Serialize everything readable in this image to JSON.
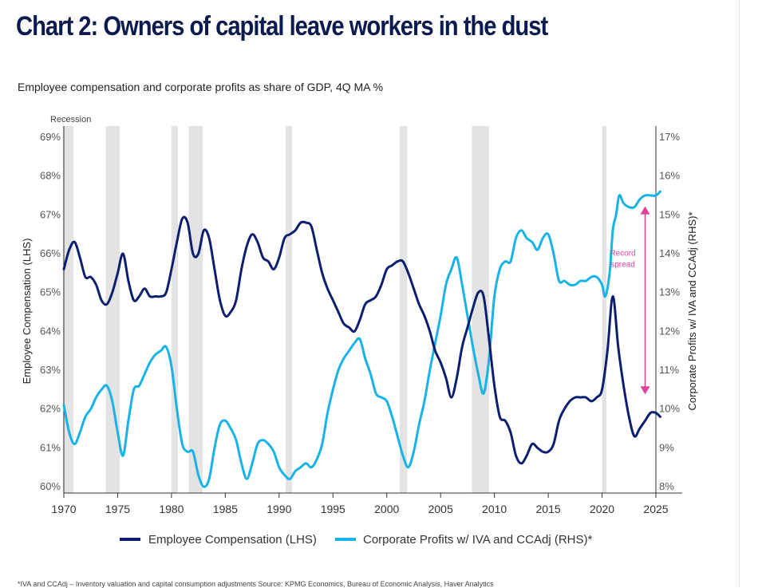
{
  "header": {
    "title": "Chart 2: Owners of capital leave workers in the dust",
    "subtitle": "Employee compensation and corporate profits as share of GDP, 4Q MA %"
  },
  "footnote": "*IVA and CCAdj – Inventory valuation and capital consumption adjustments Source: KPMG Economics, Bureau of Economic Analysis, Haver Analytics",
  "chart_data": {
    "type": "line",
    "ylabel_left": "Employee Compensation (LHS)",
    "ylabel_right": "Corporate Profits w/ IVA and CCAdj (RHS)*",
    "recession_label": "Recession",
    "xlim": [
      1970,
      2025
    ],
    "ylim_left": [
      60,
      69
    ],
    "ylim_right": [
      8,
      17
    ],
    "x_ticks": [
      "1970",
      "1975",
      "1980",
      "1985",
      "1990",
      "1995",
      "2000",
      "2005",
      "2010",
      "2015",
      "2020",
      "2025"
    ],
    "y_ticks_left": [
      "60%",
      "61%",
      "62%",
      "63%",
      "64%",
      "65%",
      "66%",
      "67%",
      "68%",
      "69%"
    ],
    "y_ticks_right": [
      "8%",
      "9%",
      "10%",
      "11%",
      "12%",
      "13%",
      "14%",
      "15%",
      "16%",
      "17%"
    ],
    "recessions": [
      [
        1969.9,
        1970.9
      ],
      [
        1973.9,
        1975.2
      ],
      [
        1980.0,
        1980.6
      ],
      [
        1981.6,
        1982.9
      ],
      [
        1990.6,
        1991.2
      ],
      [
        2001.2,
        2001.9
      ],
      [
        2007.9,
        2009.5
      ],
      [
        2020.0,
        2020.4
      ]
    ],
    "annotation": {
      "line1": "Record",
      "line2": "spread",
      "x": 2024,
      "y_top": 15.2,
      "y_bottom": 10.4
    },
    "legend_position": "bottom",
    "series": [
      {
        "name": "Employee Compensation (LHS)",
        "axis": "left",
        "color": "#0c1e6e",
        "points": [
          [
            1970,
            65.6
          ],
          [
            1970.5,
            66.1
          ],
          [
            1971,
            66.3
          ],
          [
            1971.5,
            65.9
          ],
          [
            1972,
            65.4
          ],
          [
            1972.5,
            65.4
          ],
          [
            1973,
            65.2
          ],
          [
            1973.5,
            64.8
          ],
          [
            1974,
            64.7
          ],
          [
            1974.5,
            65.0
          ],
          [
            1975,
            65.5
          ],
          [
            1975.5,
            66.0
          ],
          [
            1976,
            65.3
          ],
          [
            1976.5,
            64.8
          ],
          [
            1977,
            64.9
          ],
          [
            1977.5,
            65.1
          ],
          [
            1978,
            64.9
          ],
          [
            1978.5,
            64.9
          ],
          [
            1979,
            64.9
          ],
          [
            1979.5,
            65.0
          ],
          [
            1980,
            65.6
          ],
          [
            1980.5,
            66.3
          ],
          [
            1981,
            66.9
          ],
          [
            1981.5,
            66.8
          ],
          [
            1982,
            66.0
          ],
          [
            1982.5,
            66.0
          ],
          [
            1983,
            66.6
          ],
          [
            1983.5,
            66.4
          ],
          [
            1984,
            65.6
          ],
          [
            1984.5,
            64.8
          ],
          [
            1985,
            64.4
          ],
          [
            1985.5,
            64.5
          ],
          [
            1986,
            64.8
          ],
          [
            1986.5,
            65.6
          ],
          [
            1987,
            66.2
          ],
          [
            1987.5,
            66.5
          ],
          [
            1988,
            66.3
          ],
          [
            1988.5,
            65.9
          ],
          [
            1989,
            65.8
          ],
          [
            1989.5,
            65.6
          ],
          [
            1990,
            65.9
          ],
          [
            1990.5,
            66.4
          ],
          [
            1991,
            66.5
          ],
          [
            1991.5,
            66.6
          ],
          [
            1992,
            66.8
          ],
          [
            1992.5,
            66.8
          ],
          [
            1993,
            66.7
          ],
          [
            1993.5,
            66.1
          ],
          [
            1994,
            65.5
          ],
          [
            1994.5,
            65.1
          ],
          [
            1995,
            64.8
          ],
          [
            1995.5,
            64.5
          ],
          [
            1996,
            64.2
          ],
          [
            1996.5,
            64.1
          ],
          [
            1997,
            64.0
          ],
          [
            1997.5,
            64.3
          ],
          [
            1998,
            64.7
          ],
          [
            1998.5,
            64.8
          ],
          [
            1999,
            64.9
          ],
          [
            1999.5,
            65.2
          ],
          [
            2000,
            65.6
          ],
          [
            2000.5,
            65.7
          ],
          [
            2001,
            65.8
          ],
          [
            2001.5,
            65.8
          ],
          [
            2002,
            65.5
          ],
          [
            2002.5,
            65.1
          ],
          [
            2003,
            64.7
          ],
          [
            2003.5,
            64.4
          ],
          [
            2004,
            64.0
          ],
          [
            2004.5,
            63.5
          ],
          [
            2005,
            63.2
          ],
          [
            2005.5,
            62.8
          ],
          [
            2006,
            62.3
          ],
          [
            2006.5,
            62.8
          ],
          [
            2007,
            63.6
          ],
          [
            2007.5,
            64.1
          ],
          [
            2008,
            64.6
          ],
          [
            2008.5,
            65.0
          ],
          [
            2009,
            64.9
          ],
          [
            2009.5,
            63.8
          ],
          [
            2010,
            62.6
          ],
          [
            2010.5,
            61.8
          ],
          [
            2011,
            61.7
          ],
          [
            2011.5,
            61.4
          ],
          [
            2012,
            60.8
          ],
          [
            2012.5,
            60.6
          ],
          [
            2013,
            60.8
          ],
          [
            2013.5,
            61.1
          ],
          [
            2014,
            61.0
          ],
          [
            2014.5,
            60.9
          ],
          [
            2015,
            60.9
          ],
          [
            2015.5,
            61.1
          ],
          [
            2016,
            61.7
          ],
          [
            2016.5,
            62.0
          ],
          [
            2017,
            62.2
          ],
          [
            2017.5,
            62.3
          ],
          [
            2018,
            62.3
          ],
          [
            2018.5,
            62.3
          ],
          [
            2019,
            62.2
          ],
          [
            2019.5,
            62.3
          ],
          [
            2020,
            62.5
          ],
          [
            2020.5,
            63.5
          ],
          [
            2021,
            64.9
          ],
          [
            2021.5,
            63.6
          ],
          [
            2022,
            62.6
          ],
          [
            2022.5,
            61.8
          ],
          [
            2023,
            61.3
          ],
          [
            2023.5,
            61.5
          ],
          [
            2024,
            61.7
          ],
          [
            2024.5,
            61.9
          ],
          [
            2025,
            61.9
          ],
          [
            2025.4,
            61.8
          ]
        ]
      },
      {
        "name": "Corporate Profits w/ IVA and CCAdj (RHS)*",
        "axis": "right",
        "color": "#17b3e6",
        "points": [
          [
            1970,
            10.1
          ],
          [
            1970.5,
            9.4
          ],
          [
            1971,
            9.1
          ],
          [
            1971.5,
            9.4
          ],
          [
            1972,
            9.8
          ],
          [
            1972.5,
            10.0
          ],
          [
            1973,
            10.3
          ],
          [
            1973.5,
            10.5
          ],
          [
            1974,
            10.6
          ],
          [
            1974.5,
            10.2
          ],
          [
            1975,
            9.4
          ],
          [
            1975.5,
            8.8
          ],
          [
            1976,
            9.7
          ],
          [
            1976.5,
            10.5
          ],
          [
            1977,
            10.6
          ],
          [
            1977.5,
            10.9
          ],
          [
            1978,
            11.2
          ],
          [
            1978.5,
            11.4
          ],
          [
            1979,
            11.5
          ],
          [
            1979.5,
            11.6
          ],
          [
            1980,
            11.1
          ],
          [
            1980.5,
            10.0
          ],
          [
            1981,
            9.1
          ],
          [
            1981.5,
            8.9
          ],
          [
            1982,
            8.9
          ],
          [
            1982.5,
            8.3
          ],
          [
            1983,
            8.0
          ],
          [
            1983.5,
            8.2
          ],
          [
            1984,
            9.0
          ],
          [
            1984.5,
            9.6
          ],
          [
            1985,
            9.7
          ],
          [
            1985.5,
            9.5
          ],
          [
            1986,
            9.2
          ],
          [
            1986.5,
            8.6
          ],
          [
            1987,
            8.2
          ],
          [
            1987.5,
            8.6
          ],
          [
            1988,
            9.1
          ],
          [
            1988.5,
            9.2
          ],
          [
            1989,
            9.1
          ],
          [
            1989.5,
            8.9
          ],
          [
            1990,
            8.5
          ],
          [
            1990.5,
            8.3
          ],
          [
            1991,
            8.2
          ],
          [
            1991.5,
            8.4
          ],
          [
            1992,
            8.5
          ],
          [
            1992.5,
            8.6
          ],
          [
            1993,
            8.5
          ],
          [
            1993.5,
            8.7
          ],
          [
            1994,
            9.1
          ],
          [
            1994.5,
            9.9
          ],
          [
            1995,
            10.5
          ],
          [
            1995.5,
            11.0
          ],
          [
            1996,
            11.3
          ],
          [
            1996.5,
            11.5
          ],
          [
            1997,
            11.7
          ],
          [
            1997.5,
            11.8
          ],
          [
            1998,
            11.3
          ],
          [
            1998.5,
            10.9
          ],
          [
            1999,
            10.4
          ],
          [
            1999.5,
            10.3
          ],
          [
            2000,
            10.2
          ],
          [
            2000.5,
            9.8
          ],
          [
            2001,
            9.3
          ],
          [
            2001.5,
            8.8
          ],
          [
            2002,
            8.5
          ],
          [
            2002.5,
            8.9
          ],
          [
            2003,
            9.6
          ],
          [
            2003.5,
            10.2
          ],
          [
            2004,
            11.0
          ],
          [
            2004.5,
            11.7
          ],
          [
            2005,
            12.4
          ],
          [
            2005.5,
            13.2
          ],
          [
            2006,
            13.6
          ],
          [
            2006.5,
            13.9
          ],
          [
            2007,
            13.2
          ],
          [
            2007.5,
            12.4
          ],
          [
            2008,
            11.6
          ],
          [
            2008.5,
            10.9
          ],
          [
            2009,
            10.4
          ],
          [
            2009.5,
            11.3
          ],
          [
            2010,
            12.9
          ],
          [
            2010.5,
            13.6
          ],
          [
            2011,
            13.8
          ],
          [
            2011.5,
            13.8
          ],
          [
            2012,
            14.4
          ],
          [
            2012.5,
            14.6
          ],
          [
            2013,
            14.4
          ],
          [
            2013.5,
            14.3
          ],
          [
            2014,
            14.1
          ],
          [
            2014.5,
            14.4
          ],
          [
            2015,
            14.5
          ],
          [
            2015.5,
            14.0
          ],
          [
            2016,
            13.3
          ],
          [
            2016.5,
            13.3
          ],
          [
            2017,
            13.2
          ],
          [
            2017.5,
            13.2
          ],
          [
            2018,
            13.3
          ],
          [
            2018.5,
            13.3
          ],
          [
            2019,
            13.4
          ],
          [
            2019.5,
            13.4
          ],
          [
            2020,
            13.2
          ],
          [
            2020.3,
            12.9
          ],
          [
            2020.7,
            13.5
          ],
          [
            2021,
            14.6
          ],
          [
            2021.3,
            15.0
          ],
          [
            2021.6,
            15.5
          ],
          [
            2022,
            15.3
          ],
          [
            2022.5,
            15.2
          ],
          [
            2023,
            15.2
          ],
          [
            2023.5,
            15.4
          ],
          [
            2024,
            15.5
          ],
          [
            2024.5,
            15.5
          ],
          [
            2025,
            15.5
          ],
          [
            2025.4,
            15.6
          ]
        ]
      }
    ]
  }
}
